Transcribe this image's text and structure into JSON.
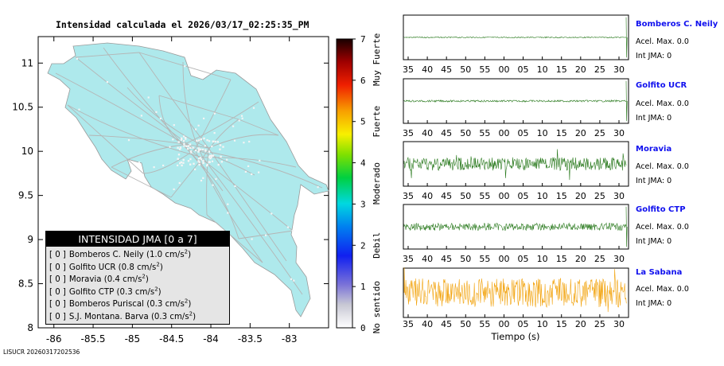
{
  "title": "Intensidad calculada el 2026/03/17_02:25:35_PM",
  "footer_id": "LISUCR 20260317202536",
  "colors": {
    "land": "#aee9ec",
    "roads": "#b5b5b5",
    "towns": "#f4f4f4",
    "trace_green": "#2a7a1e",
    "trace_orange": "#f2a20a",
    "station_name": "#1010ee"
  },
  "map": {
    "x_ticks": [
      "-86",
      "-85.5",
      "-85",
      "-84.5",
      "-84",
      "-83.5",
      "-83"
    ],
    "y_ticks": [
      "11",
      "10.5",
      "10",
      "9.5",
      "9",
      "8.5",
      "8"
    ],
    "legend": {
      "header": "INTENSIDAD JMA [0 a 7]",
      "items": [
        {
          "level": "[ 0 ]",
          "name": "Bomberos C. Neily",
          "accel": "(1.0 cm/s",
          "exp": "2",
          "close": ")"
        },
        {
          "level": "[ 0 ]",
          "name": "Golfito UCR",
          "accel": "(0.8 cm/s",
          "exp": "2",
          "close": ")"
        },
        {
          "level": "[ 0 ]",
          "name": "Moravia",
          "accel": "(0.4 cm/s",
          "exp": "2",
          "close": ")"
        },
        {
          "level": "[ 0 ]",
          "name": "Golfito CTP",
          "accel": "(0.3 cm/s",
          "exp": "2",
          "close": ")"
        },
        {
          "level": "[ 0 ]",
          "name": "Bomberos Puriscal",
          "accel": "(0.3 cm/s",
          "exp": "2",
          "close": ")"
        },
        {
          "level": "[ 0 ]",
          "name": "S.J. Montana. Barva",
          "accel": "(0.3 cm/s",
          "exp": "2",
          "close": ")"
        }
      ]
    }
  },
  "colorbar": {
    "ticks": [
      "0",
      "1",
      "2",
      "3",
      "4",
      "5",
      "6",
      "7"
    ],
    "categories": [
      "No sentido",
      "Debil",
      "Moderado",
      "Fuerte",
      "Muy Fuerte"
    ]
  },
  "traces": {
    "time_ticks": [
      "35",
      "40",
      "45",
      "50",
      "55",
      "00",
      "05",
      "10",
      "15",
      "20",
      "25",
      "30"
    ],
    "xlabel": "Tiempo (s)",
    "stations": [
      {
        "name": "Bomberos C. Neily",
        "accel_label": "Acel. Max. 0.0",
        "jma_label": "Int JMA: 0",
        "color": "#2a7a1e"
      },
      {
        "name": "Golfito UCR",
        "accel_label": "Acel. Max. 0.0",
        "jma_label": "Int JMA: 0",
        "color": "#2a7a1e"
      },
      {
        "name": "Moravia",
        "accel_label": "Acel. Max. 0.0",
        "jma_label": "Int JMA: 0",
        "color": "#2a7a1e"
      },
      {
        "name": "Golfito CTP",
        "accel_label": "Acel. Max. 0.0",
        "jma_label": "Int JMA: 0",
        "color": "#2a7a1e"
      },
      {
        "name": "La Sabana",
        "accel_label": "Acel. Max. 0.0",
        "jma_label": "Int JMA: 0",
        "color": "#f2a20a"
      }
    ]
  },
  "chart_data": [
    {
      "type": "map",
      "title": "Intensidad calculada el 2026/03/17_02:25:35_PM",
      "xlim": [
        -86.2,
        -82.5
      ],
      "ylim": [
        8.0,
        11.3
      ],
      "x_ticks": [
        -86,
        -85.5,
        -85,
        -84.5,
        -84,
        -83.5,
        -83
      ],
      "y_ticks": [
        8,
        8.5,
        9,
        9.5,
        10,
        10.5,
        11
      ],
      "legend_title": "INTENSIDAD JMA [0 a 7]",
      "stations": [
        {
          "name": "Bomberos C. Neily",
          "intensity": 0,
          "pga_cm_s2": 1.0
        },
        {
          "name": "Golfito UCR",
          "intensity": 0,
          "pga_cm_s2": 0.8
        },
        {
          "name": "Moravia",
          "intensity": 0,
          "pga_cm_s2": 0.4
        },
        {
          "name": "Golfito CTP",
          "intensity": 0,
          "pga_cm_s2": 0.3
        },
        {
          "name": "Bomberos Puriscal",
          "intensity": 0,
          "pga_cm_s2": 0.3
        },
        {
          "name": "S.J. Montana. Barva",
          "intensity": 0,
          "pga_cm_s2": 0.3
        }
      ]
    },
    {
      "type": "colorbar",
      "range": [
        0,
        7
      ],
      "ticks": [
        0,
        1,
        2,
        3,
        4,
        5,
        6,
        7
      ],
      "categories": [
        "No sentido",
        "Debil",
        "Moderado",
        "Fuerte",
        "Muy Fuerte"
      ]
    },
    {
      "type": "line",
      "xlabel": "Tiempo (s)",
      "x_tick_labels": [
        "35",
        "40",
        "45",
        "50",
        "55",
        "00",
        "05",
        "10",
        "15",
        "20",
        "25",
        "30"
      ],
      "series": [
        {
          "name": "Bomberos C. Neily",
          "acel_max": 0.0,
          "int_jma": 0,
          "noise_level": 0.03,
          "spike_near_end": true
        },
        {
          "name": "Golfito UCR",
          "acel_max": 0.0,
          "int_jma": 0,
          "noise_level": 0.05,
          "spike_near_end": true
        },
        {
          "name": "Moravia",
          "acel_max": 0.0,
          "int_jma": 0,
          "noise_level": 0.35,
          "spike_near_end": false
        },
        {
          "name": "Golfito CTP",
          "acel_max": 0.0,
          "int_jma": 0,
          "noise_level": 0.2,
          "spike_near_end": true
        },
        {
          "name": "La Sabana",
          "acel_max": 0.0,
          "int_jma": 0,
          "noise_level": 0.7,
          "spike_near_end": false
        }
      ]
    }
  ]
}
